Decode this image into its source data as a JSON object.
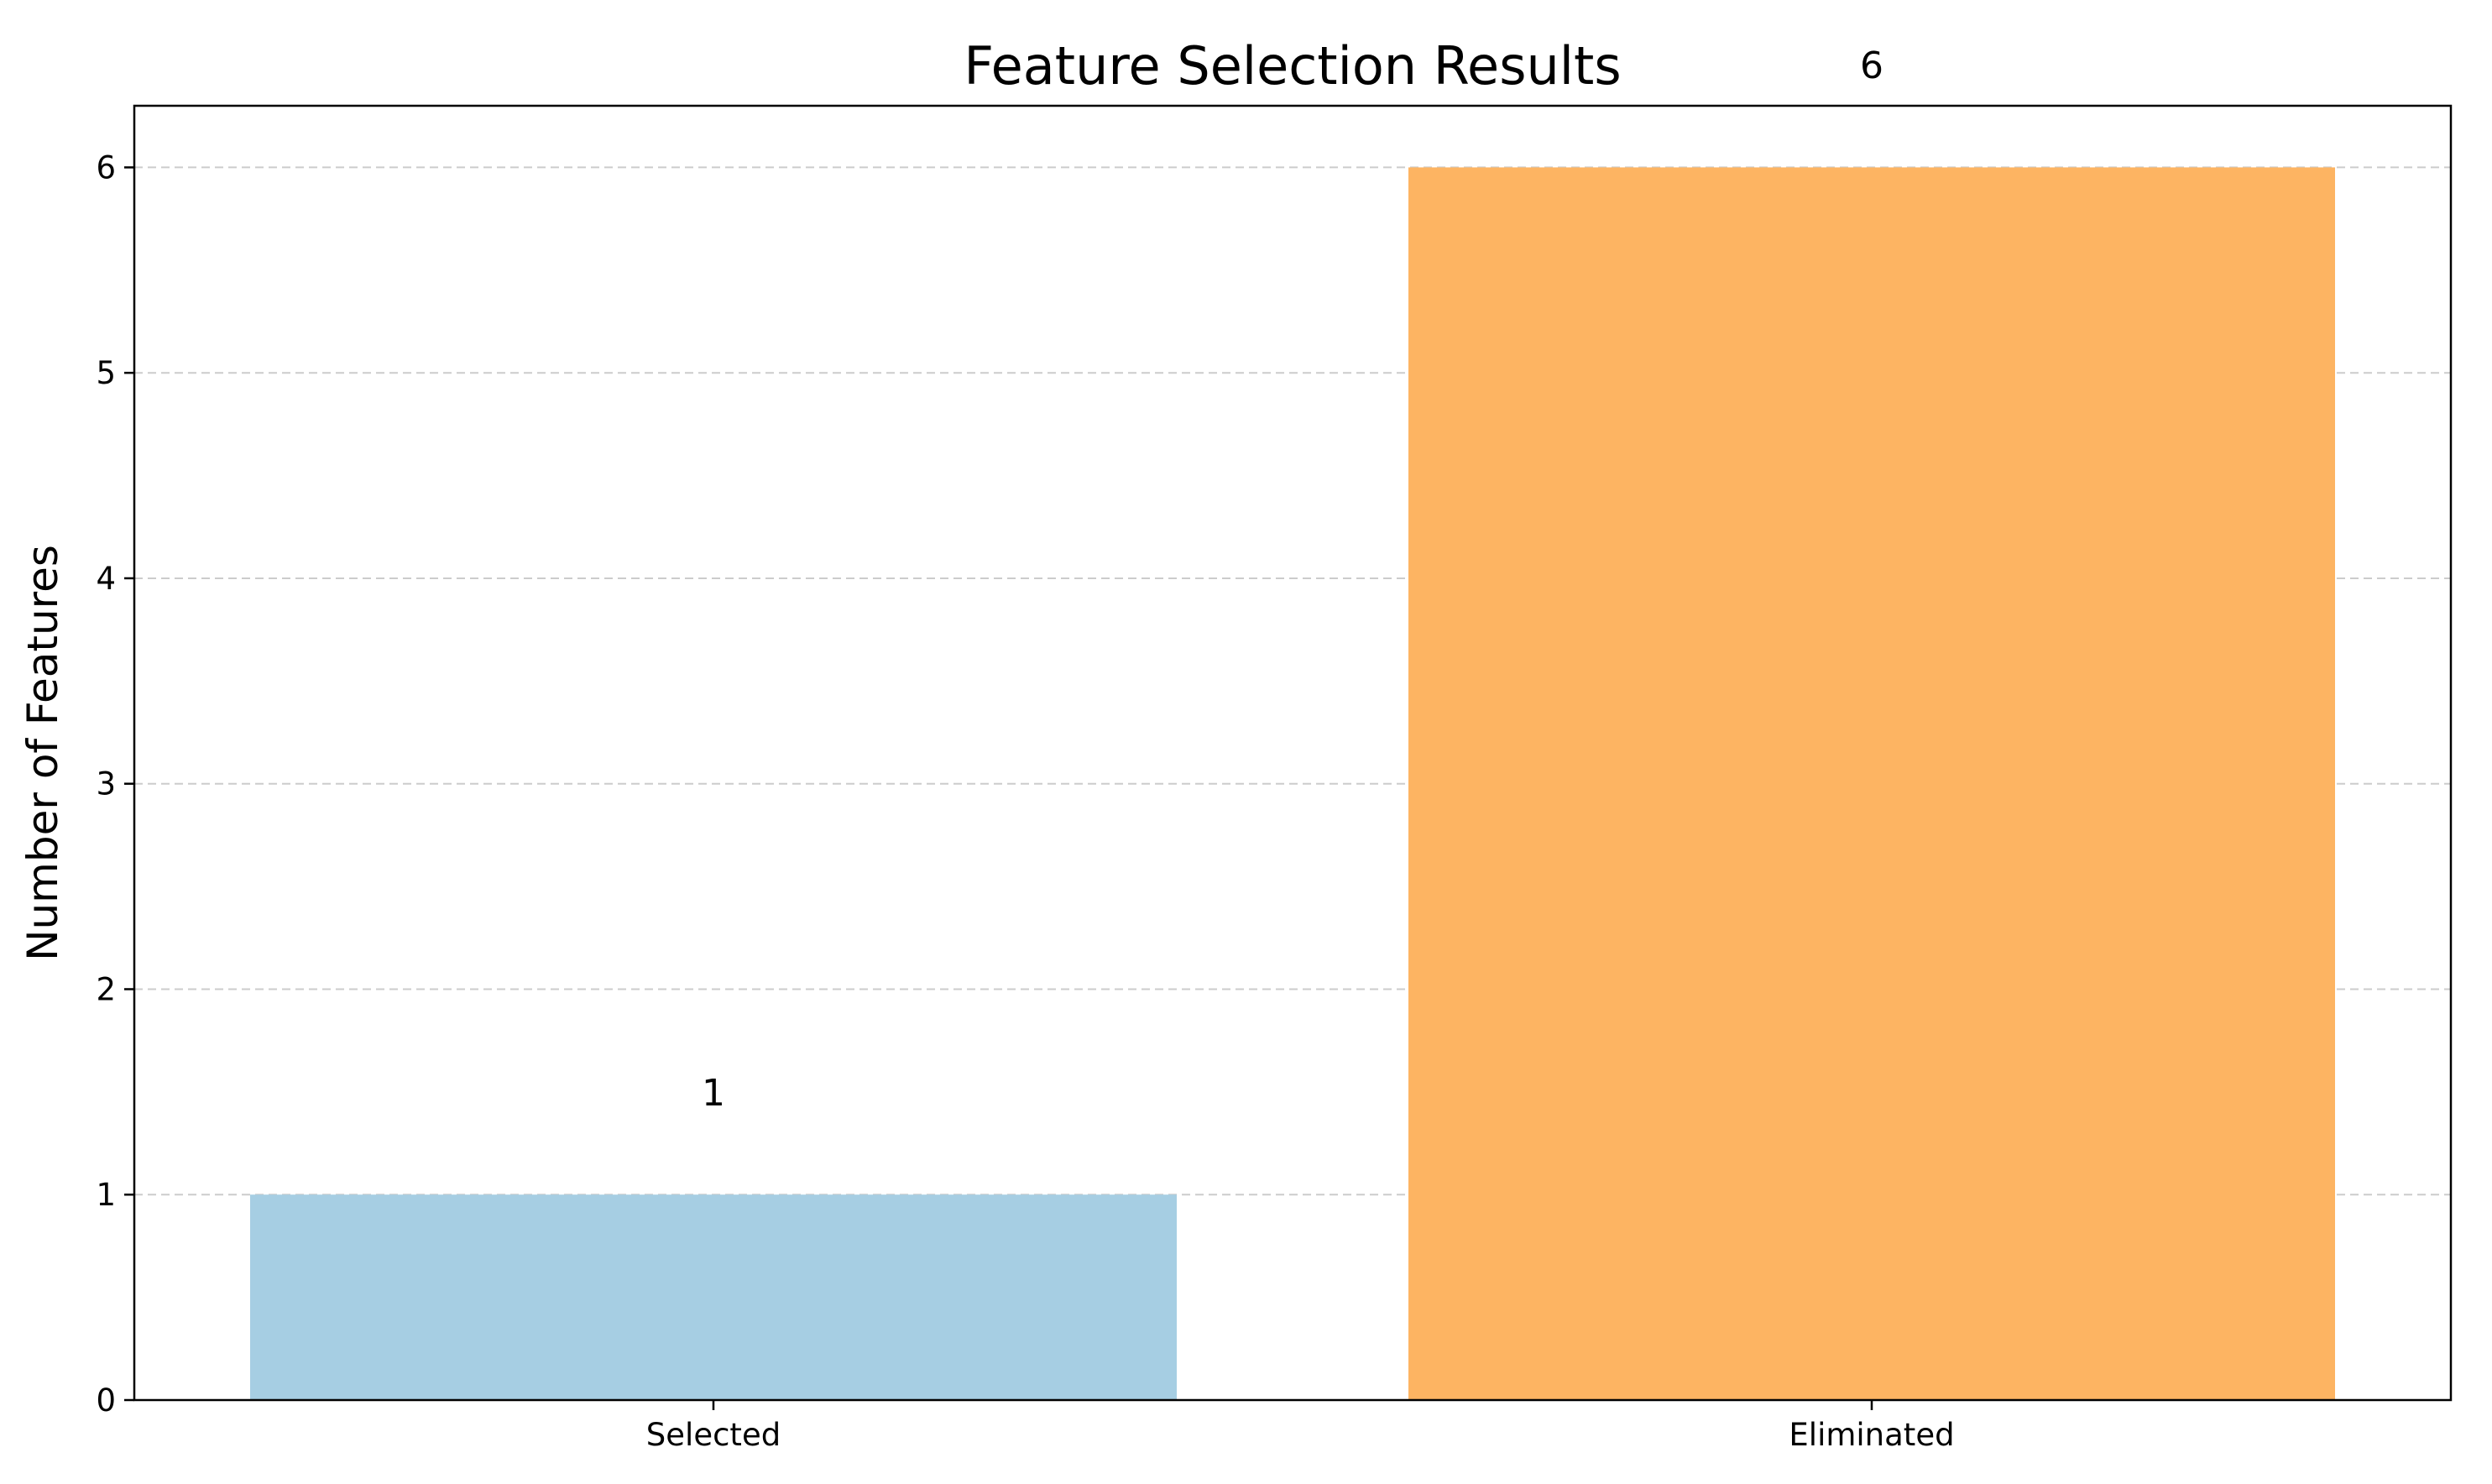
{
  "chart_data": {
    "type": "bar",
    "title": "Feature Selection Results",
    "xlabel": "",
    "ylabel": "Number of Features",
    "categories": [
      "Selected",
      "Eliminated"
    ],
    "values": [
      1,
      6
    ],
    "data_labels": [
      "1",
      "6"
    ],
    "colors": [
      "#a6cee3",
      "#fdb462"
    ],
    "ylim": [
      0,
      6.3
    ],
    "yticks": [
      0,
      1,
      2,
      3,
      4,
      5,
      6
    ],
    "grid": "y-dashed",
    "legend": "none"
  }
}
